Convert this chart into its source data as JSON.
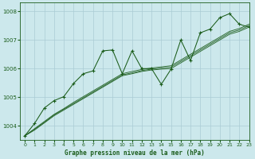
{
  "title": "Graphe pression niveau de la mer (hPa)",
  "bg_color": "#cce8ec",
  "grid_color": "#aaccd4",
  "line_color": "#1a5c1a",
  "xlim": [
    -0.5,
    23
  ],
  "ylim": [
    1003.5,
    1008.3
  ],
  "xticks": [
    0,
    1,
    2,
    3,
    4,
    5,
    6,
    7,
    8,
    9,
    10,
    11,
    12,
    13,
    14,
    15,
    16,
    17,
    18,
    19,
    20,
    21,
    22,
    23
  ],
  "yticks": [
    1004,
    1005,
    1006,
    1007,
    1008
  ],
  "smooth_series": [
    [
      1003.65,
      1003.85,
      1004.1,
      1004.35,
      1004.55,
      1004.75,
      1004.95,
      1005.15,
      1005.35,
      1005.55,
      1005.75,
      1005.82,
      1005.9,
      1005.95,
      1005.98,
      1006.0,
      1006.2,
      1006.4,
      1006.6,
      1006.8,
      1007.0,
      1007.2,
      1007.3,
      1007.45
    ],
    [
      1003.65,
      1003.88,
      1004.12,
      1004.38,
      1004.58,
      1004.78,
      1004.98,
      1005.18,
      1005.38,
      1005.58,
      1005.78,
      1005.85,
      1005.93,
      1005.98,
      1006.02,
      1006.05,
      1006.25,
      1006.45,
      1006.65,
      1006.85,
      1007.05,
      1007.25,
      1007.35,
      1007.5
    ],
    [
      1003.65,
      1003.9,
      1004.15,
      1004.4,
      1004.6,
      1004.82,
      1005.02,
      1005.22,
      1005.42,
      1005.62,
      1005.82,
      1005.9,
      1005.97,
      1006.02,
      1006.06,
      1006.1,
      1006.3,
      1006.5,
      1006.7,
      1006.9,
      1007.1,
      1007.3,
      1007.4,
      1007.55
    ]
  ],
  "noisy_x": [
    0,
    1,
    2,
    3,
    4,
    5,
    6,
    7,
    8,
    9,
    10,
    11,
    12,
    13,
    14,
    15,
    16,
    17,
    18,
    19,
    20,
    21,
    22,
    23
  ],
  "noisy_y": [
    1003.65,
    1004.08,
    1004.62,
    1004.88,
    1005.02,
    1005.48,
    1005.82,
    1005.92,
    1006.62,
    1006.65,
    1005.82,
    1006.62,
    1006.0,
    1006.0,
    1005.45,
    1005.98,
    1007.0,
    1006.28,
    1007.25,
    1007.38,
    1007.78,
    1007.92,
    1007.55,
    1007.45
  ]
}
